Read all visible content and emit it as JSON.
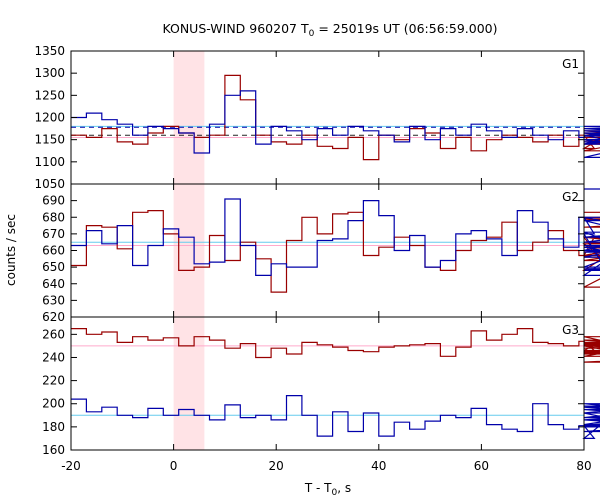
{
  "chart_data": {
    "type": "line",
    "title": "KONUS-WIND 960207 T",
    "title_sub": "0",
    "title_rest": " = 25019s UT (06:56:59.000)",
    "xlabel": "T - T",
    "xlabel_sub": "0",
    "xlabel_rest": ", s",
    "ylabel": "counts / sec",
    "xlim": [
      -20,
      80
    ],
    "xticks": [
      "-20",
      "0",
      "20",
      "40",
      "60",
      "80"
    ],
    "bin_width": 3,
    "highlight_interval": [
      0,
      6
    ],
    "colors": {
      "red": "#990000",
      "blue": "#0000aa",
      "light_red": "#ffaacc",
      "light_blue": "#66ccee",
      "band": "#ffe3e6",
      "dark": "#222222"
    },
    "panels": [
      {
        "label": "G1",
        "ylim": [
          1050,
          1350
        ],
        "yticks": [
          "1050",
          "1100",
          "1150",
          "1200",
          "1250",
          "1300",
          "1350"
        ],
        "red_values": [
          1160,
          1155,
          1175,
          1145,
          1140,
          1165,
          1180,
          1165,
          1155,
          1160,
          1295,
          1240,
          1160,
          1145,
          1140,
          1160,
          1135,
          1130,
          1155,
          1105,
          1160,
          1150,
          1175,
          1165,
          1130,
          1155,
          1125,
          1150,
          1160,
          1155,
          1145,
          1160,
          1135,
          1160,
          1130,
          1165,
          1150,
          1125,
          1155,
          1150,
          1145,
          1140,
          1160,
          1145,
          1170,
          1140,
          1165,
          1150,
          1145,
          1160
        ],
        "blue_values": [
          1200,
          1210,
          1195,
          1185,
          1160,
          1180,
          1175,
          1165,
          1120,
          1185,
          1250,
          1260,
          1140,
          1180,
          1170,
          1150,
          1175,
          1160,
          1180,
          1170,
          1160,
          1145,
          1180,
          1150,
          1175,
          1160,
          1185,
          1170,
          1155,
          1175,
          1160,
          1150,
          1170,
          1155,
          1165,
          1160,
          1140,
          1175,
          1165,
          1150,
          1110,
          1170,
          1160,
          1140,
          1180,
          1165,
          1150,
          1170,
          1145,
          1160
        ],
        "red_level": 1155,
        "blue_level": 1180,
        "red_dashed": 1160,
        "blue_dashed": 1178
      },
      {
        "label": "G2",
        "ylim": [
          620,
          700
        ],
        "yticks": [
          "620",
          "630",
          "640",
          "650",
          "660",
          "670",
          "680",
          "690"
        ],
        "red_values": [
          651,
          675,
          674,
          661,
          683,
          684,
          670,
          648,
          650,
          669,
          654,
          665,
          655,
          635,
          666,
          680,
          670,
          682,
          683,
          657,
          662,
          668,
          663,
          650,
          648,
          660,
          666,
          668,
          677,
          660,
          665,
          672,
          660,
          657,
          668,
          648,
          664,
          638,
          660,
          656,
          680,
          668,
          665,
          662,
          657,
          679,
          668,
          654,
          674,
          683
        ],
        "blue_values": [
          663,
          672,
          664,
          675,
          651,
          663,
          673,
          668,
          652,
          653,
          691,
          663,
          645,
          652,
          650,
          650,
          666,
          667,
          678,
          690,
          681,
          660,
          669,
          650,
          654,
          670,
          672,
          667,
          657,
          684,
          677,
          667,
          662,
          680,
          670,
          645,
          662,
          656,
          665,
          671,
          649,
          650,
          680,
          663,
          659,
          668,
          678,
          648,
          660,
          697
        ],
        "red_level": 663,
        "blue_level": 665
      },
      {
        "label": "G3",
        "ylim": [
          160,
          275
        ],
        "yticks": [
          "160",
          "180",
          "200",
          "220",
          "240",
          "260"
        ],
        "red_values": [
          265,
          260,
          262,
          253,
          258,
          255,
          257,
          250,
          258,
          255,
          248,
          252,
          240,
          248,
          243,
          253,
          251,
          249,
          246,
          245,
          249,
          250,
          251,
          252,
          241,
          249,
          263,
          255,
          260,
          265,
          253,
          252,
          250,
          254,
          246,
          258,
          250,
          241,
          252,
          255,
          248,
          253,
          243,
          253,
          251,
          250,
          244,
          236,
          245,
          246
        ],
        "blue_values": [
          204,
          193,
          197,
          190,
          188,
          196,
          190,
          195,
          190,
          186,
          199,
          188,
          190,
          186,
          207,
          190,
          172,
          193,
          176,
          192,
          172,
          184,
          178,
          185,
          190,
          188,
          196,
          182,
          178,
          176,
          200,
          182,
          178,
          181,
          170,
          188,
          192,
          197,
          192,
          176,
          182,
          198,
          195,
          186,
          176,
          181,
          200,
          186,
          200,
          180
        ],
        "red_level": 250,
        "blue_level": 190
      }
    ]
  }
}
